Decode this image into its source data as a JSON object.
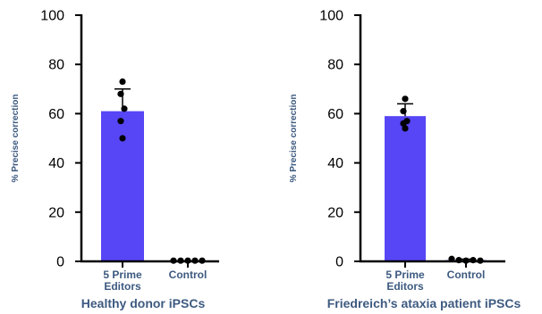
{
  "colors": {
    "bar": "#5746f5",
    "axis": "#000000",
    "label": "#3d5a80",
    "point": "#000000"
  },
  "chart_data": [
    {
      "type": "bar",
      "caption": "Healthy donor iPSCs",
      "ylabel": "% Precise correction",
      "ylim": [
        0,
        100
      ],
      "yticks": [
        "0",
        "20",
        "40",
        "60",
        "80",
        "100"
      ],
      "categories": [
        "5 Prime Editors",
        "Control"
      ],
      "category_lines": [
        [
          "5 Prime",
          "Editors"
        ],
        [
          "Control"
        ]
      ],
      "values": [
        61,
        0.3
      ],
      "error": [
        9,
        0
      ],
      "points": [
        [
          73,
          68,
          62,
          57,
          50
        ],
        [
          0.3,
          0.3,
          0.3,
          0.3,
          0.3
        ]
      ]
    },
    {
      "type": "bar",
      "caption": "Friedreich’s ataxia patient iPSCs",
      "ylabel": "% Precise correction",
      "ylim": [
        0,
        100
      ],
      "yticks": [
        "0",
        "20",
        "40",
        "60",
        "80",
        "100"
      ],
      "categories": [
        "5 Prime Editors",
        "Control"
      ],
      "category_lines": [
        [
          "5 Prime",
          "Editors"
        ],
        [
          "Control"
        ]
      ],
      "values": [
        59,
        0.5
      ],
      "error": [
        5,
        0.4
      ],
      "points": [
        [
          66,
          61,
          57,
          56,
          54
        ],
        [
          1,
          0.5,
          0.3,
          0.5,
          0.3
        ]
      ]
    }
  ]
}
